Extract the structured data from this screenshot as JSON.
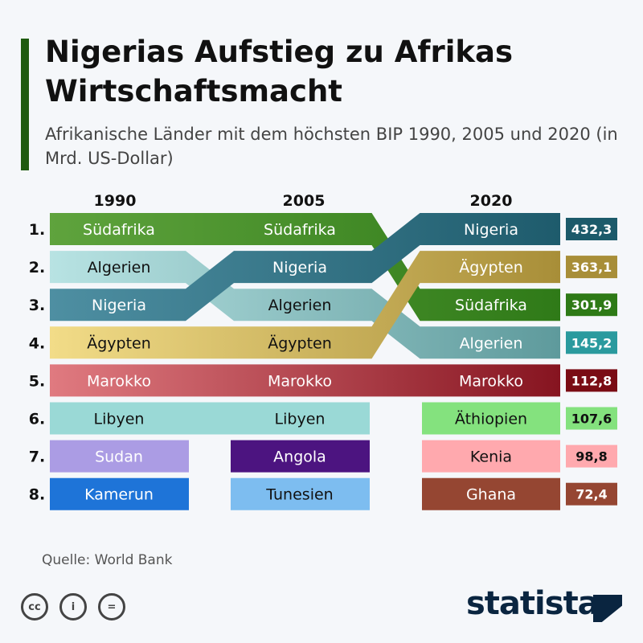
{
  "title": "Nigerias Aufstieg zu Afrikas Wirtschaftsmacht",
  "subtitle": "Afrikanische Länder mit dem höchsten BIP 1990, 2005 und 2020 (in Mrd. US-Dollar)",
  "source": "Quelle: World Bank",
  "logo": "statista",
  "chart_data": {
    "type": "bump",
    "columns": [
      "1990",
      "2005",
      "2020"
    ],
    "rank_labels": [
      "1.",
      "2.",
      "3.",
      "4.",
      "5.",
      "6.",
      "7.",
      "8."
    ],
    "series": [
      {
        "name": "Südafrika",
        "ranks": [
          1,
          1,
          3
        ],
        "colors": [
          "#5fa33d",
          "#2f7a18"
        ],
        "text": "#ffffff",
        "value_2020": "301,9",
        "value_color": "#2e7a16"
      },
      {
        "name": "Algerien",
        "ranks": [
          2,
          3,
          4
        ],
        "colors": [
          "#b8e3e3",
          "#5e9a9c"
        ],
        "text_cols": [
          "#111111",
          "#111111",
          "#ffffff"
        ],
        "value_2020": "145,2",
        "value_color": "#2a9a9e"
      },
      {
        "name": "Nigeria",
        "ranks": [
          3,
          2,
          1
        ],
        "colors": [
          "#4e8fa2",
          "#1e5b6c"
        ],
        "text": "#ffffff",
        "value_2020": "432,3",
        "value_color": "#1c5a6a"
      },
      {
        "name": "Ägypten",
        "ranks": [
          4,
          4,
          2
        ],
        "colors": [
          "#f2dc88",
          "#a88e38"
        ],
        "text_cols": [
          "#111111",
          "#111111",
          "#ffffff"
        ],
        "value_2020": "363,1",
        "value_color": "#a88e38"
      },
      {
        "name": "Marokko",
        "ranks": [
          5,
          5,
          5
        ],
        "colors": [
          "#e07a80",
          "#861420"
        ],
        "text": "#ffffff",
        "value_2020": "112,8",
        "value_color": "#7a0c14"
      },
      {
        "name": "Libyen",
        "ranks": [
          6,
          6,
          null
        ],
        "colors": [
          "#9ad9d6",
          "#9ad9d6"
        ],
        "text": "#111111"
      },
      {
        "name": "Äthiopien",
        "ranks": [
          null,
          null,
          6
        ],
        "colors": [
          "#84e27e",
          "#84e27e"
        ],
        "text": "#111111",
        "value_2020": "107,6",
        "value_color": "#84e27e",
        "value_text": "#111111"
      },
      {
        "name": "Sudan",
        "ranks": [
          7,
          null,
          null
        ],
        "colors": [
          "#ab9ce4",
          "#ab9ce4"
        ],
        "text": "#ffffff"
      },
      {
        "name": "Angola",
        "ranks": [
          null,
          7,
          null
        ],
        "colors": [
          "#4c1480",
          "#4c1480"
        ],
        "text": "#ffffff"
      },
      {
        "name": "Kenia",
        "ranks": [
          null,
          null,
          7
        ],
        "colors": [
          "#ffa9ae",
          "#ffa9ae"
        ],
        "text": "#111111",
        "value_2020": "98,8",
        "value_color": "#ffa9ae",
        "value_text": "#111111"
      },
      {
        "name": "Kamerun",
        "ranks": [
          8,
          null,
          null
        ],
        "colors": [
          "#1e74d8",
          "#1e74d8"
        ],
        "text": "#ffffff"
      },
      {
        "name": "Tunesien",
        "ranks": [
          null,
          8,
          null
        ],
        "colors": [
          "#7dbdf0",
          "#7dbdf0"
        ],
        "text": "#111111"
      },
      {
        "name": "Ghana",
        "ranks": [
          null,
          null,
          8
        ],
        "colors": [
          "#954632",
          "#954632"
        ],
        "text": "#ffffff",
        "value_2020": "72,4",
        "value_color": "#954632"
      }
    ]
  }
}
